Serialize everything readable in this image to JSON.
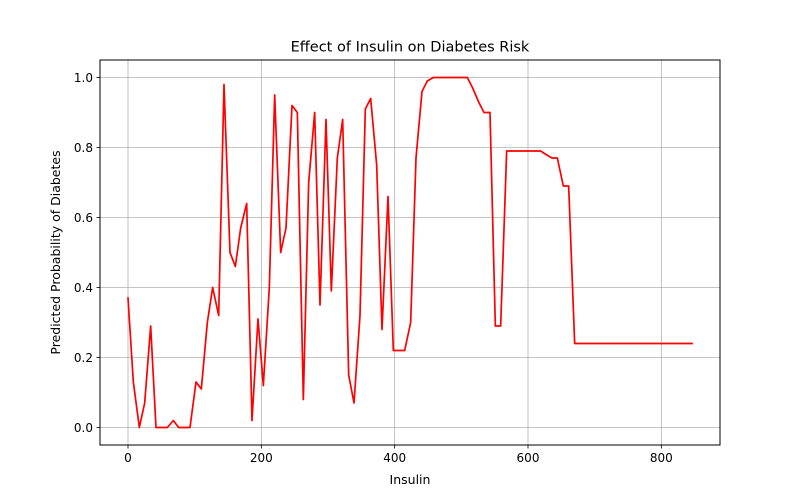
{
  "chart_data": {
    "type": "line",
    "title": "Effect of Insulin on Diabetes Risk",
    "xlabel": "Insulin",
    "ylabel": "Predicted Probability of Diabetes",
    "xlim": [
      -42,
      888
    ],
    "ylim": [
      -0.05,
      1.05
    ],
    "grid": true,
    "line_color": "#ff0000",
    "xticks": [
      {
        "value": 0,
        "label": "0"
      },
      {
        "value": 200,
        "label": "200"
      },
      {
        "value": 400,
        "label": "400"
      },
      {
        "value": 600,
        "label": "600"
      },
      {
        "value": 800,
        "label": "800"
      }
    ],
    "yticks": [
      {
        "value": 0.0,
        "label": "0.0"
      },
      {
        "value": 0.2,
        "label": "0.2"
      },
      {
        "value": 0.4,
        "label": "0.4"
      },
      {
        "value": 0.6,
        "label": "0.6"
      },
      {
        "value": 0.8,
        "label": "0.8"
      },
      {
        "value": 1.0,
        "label": "1.0"
      }
    ],
    "series": [
      {
        "name": "Predicted probability",
        "x": [
          0,
          8,
          17,
          25,
          34,
          42,
          51,
          59,
          68,
          76,
          85,
          93,
          102,
          110,
          119,
          127,
          136,
          144,
          153,
          161,
          169,
          178,
          186,
          195,
          203,
          212,
          220,
          229,
          237,
          246,
          254,
          263,
          271,
          280,
          288,
          297,
          305,
          314,
          322,
          331,
          339,
          348,
          356,
          364,
          373,
          381,
          390,
          398,
          407,
          415,
          424,
          432,
          441,
          449,
          458,
          466,
          475,
          483,
          492,
          500,
          509,
          517,
          526,
          534,
          543,
          551,
          559,
          568,
          576,
          585,
          593,
          602,
          610,
          619,
          627,
          636,
          644,
          653,
          661,
          670,
          678,
          687,
          695,
          704,
          712,
          720,
          729,
          737,
          746,
          754,
          763,
          771,
          780,
          788,
          797,
          805,
          814,
          822,
          831,
          846
        ],
        "values": [
          0.37,
          0.13,
          0.0,
          0.07,
          0.29,
          0.0,
          0.0,
          0.0,
          0.02,
          0.0,
          0.0,
          0.0,
          0.13,
          0.11,
          0.3,
          0.4,
          0.32,
          0.98,
          0.5,
          0.46,
          0.57,
          0.64,
          0.02,
          0.31,
          0.12,
          0.4,
          0.95,
          0.5,
          0.57,
          0.92,
          0.9,
          0.08,
          0.7,
          0.9,
          0.35,
          0.88,
          0.39,
          0.77,
          0.88,
          0.15,
          0.07,
          0.32,
          0.91,
          0.94,
          0.75,
          0.28,
          0.66,
          0.22,
          0.22,
          0.22,
          0.3,
          0.77,
          0.96,
          0.99,
          1.0,
          1.0,
          1.0,
          1.0,
          1.0,
          1.0,
          1.0,
          0.97,
          0.93,
          0.9,
          0.9,
          0.29,
          0.29,
          0.79,
          0.79,
          0.79,
          0.79,
          0.79,
          0.79,
          0.79,
          0.78,
          0.77,
          0.77,
          0.69,
          0.69,
          0.24,
          0.24,
          0.24,
          0.24,
          0.24,
          0.24,
          0.24,
          0.24,
          0.24,
          0.24,
          0.24,
          0.24,
          0.24,
          0.24,
          0.24,
          0.24,
          0.24,
          0.24,
          0.24,
          0.24,
          0.24
        ]
      }
    ]
  }
}
